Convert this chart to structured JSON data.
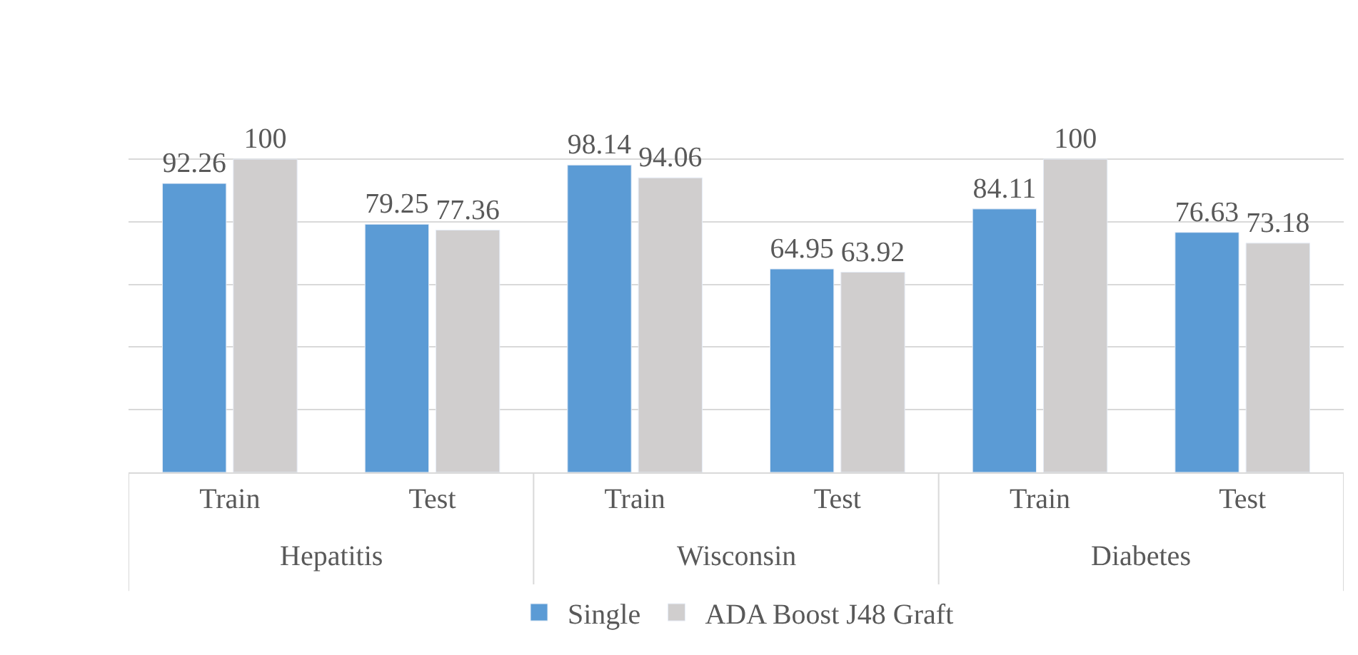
{
  "chart_data": {
    "type": "bar",
    "categories": [
      "Train",
      "Test",
      "Train",
      "Test",
      "Train",
      "Test"
    ],
    "annotations": [
      "Hepatitis",
      "Wisconsin",
      "Diabetes"
    ],
    "series": [
      {
        "name": "Single",
        "color": "#5b9bd5",
        "values": [
          92.26,
          79.25,
          98.14,
          64.95,
          84.11,
          76.63
        ]
      },
      {
        "name": "ADA Boost J48 Graft",
        "color": "#d0cece",
        "values": [
          100,
          77.36,
          94.06,
          63.92,
          100,
          73.18
        ]
      }
    ],
    "yticks": [
      {
        "value": 0,
        "label": null
      },
      {
        "value": 20,
        "label": null
      },
      {
        "value": 40,
        "label": null
      },
      {
        "value": 60,
        "label": null
      },
      {
        "value": 80,
        "label": null
      },
      {
        "value": 100,
        "label": null
      }
    ],
    "tick_labels": "x",
    "grid": "y",
    "data_labels": true,
    "legend": "bottom"
  }
}
